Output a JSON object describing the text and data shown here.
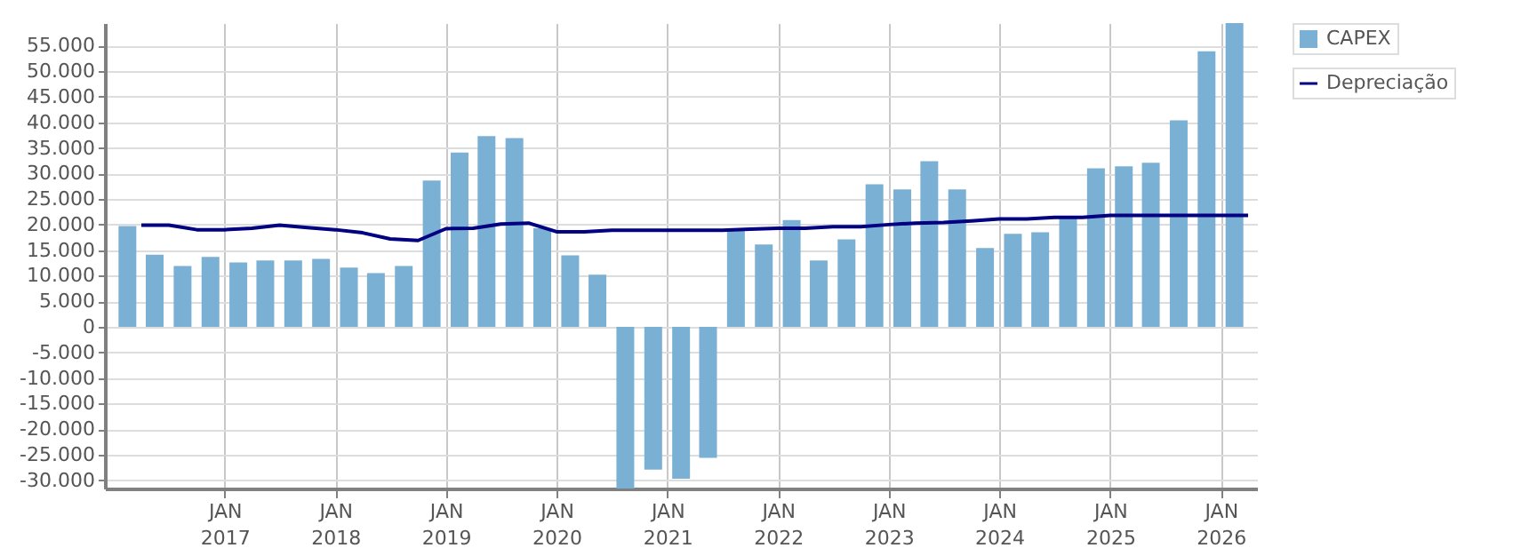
{
  "chart_data": {
    "type": "bar",
    "x": [
      "2016-02-15",
      "2016-05-15",
      "2016-08-15",
      "2016-11-15",
      "2017-02-15",
      "2017-05-15",
      "2017-08-15",
      "2017-11-15",
      "2018-02-15",
      "2018-05-15",
      "2018-08-15",
      "2018-11-15",
      "2019-02-15",
      "2019-05-15",
      "2019-08-15",
      "2019-11-15",
      "2020-02-15",
      "2020-05-15",
      "2020-08-15",
      "2020-11-15",
      "2021-02-15",
      "2021-05-15",
      "2021-08-15",
      "2021-11-15",
      "2022-02-15",
      "2022-05-15",
      "2022-08-15",
      "2022-11-15",
      "2023-02-15",
      "2023-05-15",
      "2023-08-15",
      "2023-11-15",
      "2024-02-15",
      "2024-05-15",
      "2024-08-15",
      "2024-11-15",
      "2025-02-15",
      "2025-05-15",
      "2025-08-15",
      "2025-11-15",
      "2026-02-15"
    ],
    "series": [
      {
        "name": "CAPEX",
        "color": "#7ab0d4",
        "values": [
          19700,
          14100,
          11900,
          13700,
          12600,
          13000,
          13000,
          13300,
          11600,
          10500,
          11900,
          28600,
          34100,
          37300,
          36900,
          19300,
          14000,
          10200,
          -31600,
          -27900,
          -29700,
          -25600,
          18900,
          16100,
          20900,
          13000,
          17100,
          27900,
          26900,
          32400,
          26900,
          15400,
          18200,
          18500,
          21300,
          31000,
          31400,
          32100,
          40400,
          53900,
          59400
        ]
      },
      {
        "name": "Depreciação",
        "type": "line",
        "color": "#000080",
        "x": [
          "2016-04-01",
          "2016-07-01",
          "2016-10-01",
          "2017-01-01",
          "2017-04-01",
          "2017-07-01",
          "2017-10-01",
          "2018-01-01",
          "2018-04-01",
          "2018-07-01",
          "2018-10-01",
          "2019-01-01",
          "2019-04-01",
          "2019-07-01",
          "2019-10-01",
          "2020-01-01",
          "2020-04-01",
          "2020-07-01",
          "2020-10-01",
          "2021-01-01",
          "2021-04-01",
          "2021-07-01",
          "2021-10-01",
          "2022-01-01",
          "2022-04-01",
          "2022-07-01",
          "2022-10-01",
          "2023-01-01",
          "2023-04-01",
          "2023-07-01",
          "2023-10-01",
          "2024-01-01",
          "2024-04-01",
          "2024-07-01",
          "2024-10-01",
          "2025-01-01",
          "2025-04-01",
          "2025-07-01",
          "2025-10-01",
          "2026-01-01",
          "2026-04-01"
        ],
        "values": [
          19900,
          19900,
          19000,
          19000,
          19300,
          19900,
          19400,
          19000,
          18400,
          17200,
          16900,
          19200,
          19300,
          20100,
          20300,
          18600,
          18600,
          18900,
          18900,
          18900,
          18900,
          18900,
          19100,
          19300,
          19300,
          19600,
          19600,
          20000,
          20300,
          20400,
          20700,
          21100,
          21100,
          21400,
          21400,
          21800,
          21800,
          21800,
          21800,
          21800,
          21800
        ]
      }
    ],
    "xlim": [
      "2016-01-01",
      "2026-04-01"
    ],
    "xticks": [
      {
        "value": "2017-01-01",
        "label": "JAN 2017"
      },
      {
        "value": "2018-01-01",
        "label": "JAN 2018"
      },
      {
        "value": "2019-01-01",
        "label": "JAN 2019"
      },
      {
        "value": "2020-01-01",
        "label": "JAN 2020"
      },
      {
        "value": "2021-01-01",
        "label": "JAN 2021"
      },
      {
        "value": "2022-01-01",
        "label": "JAN 2022"
      },
      {
        "value": "2023-01-01",
        "label": "JAN 2023"
      },
      {
        "value": "2024-01-01",
        "label": "JAN 2024"
      },
      {
        "value": "2025-01-01",
        "label": "JAN 2025"
      },
      {
        "value": "2026-01-01",
        "label": "JAN 2026"
      }
    ],
    "ylim": [
      -31600,
      59400
    ],
    "yticks": [
      {
        "value": -30000,
        "label": "-30.000"
      },
      {
        "value": -25000,
        "label": "-25.000"
      },
      {
        "value": -20000,
        "label": "-20.000"
      },
      {
        "value": -15000,
        "label": "-15.000"
      },
      {
        "value": -10000,
        "label": "-10.000"
      },
      {
        "value": -5000,
        "label": "-5.000"
      },
      0,
      {
        "value": 5000,
        "label": "5.000"
      },
      {
        "value": 10000,
        "label": "10.000"
      },
      {
        "value": 15000,
        "label": "15.000"
      },
      {
        "value": 20000,
        "label": "20.000"
      },
      {
        "value": 25000,
        "label": "25.000"
      },
      {
        "value": 30000,
        "label": "30.000"
      },
      {
        "value": 35000,
        "label": "35.000"
      },
      {
        "value": 40000,
        "label": "40.000"
      },
      {
        "value": 45000,
        "label": "45.000"
      },
      {
        "value": 50000,
        "label": "50.000"
      },
      {
        "value": 55000,
        "label": "55.000"
      }
    ],
    "grid": true,
    "legend": "top right"
  }
}
